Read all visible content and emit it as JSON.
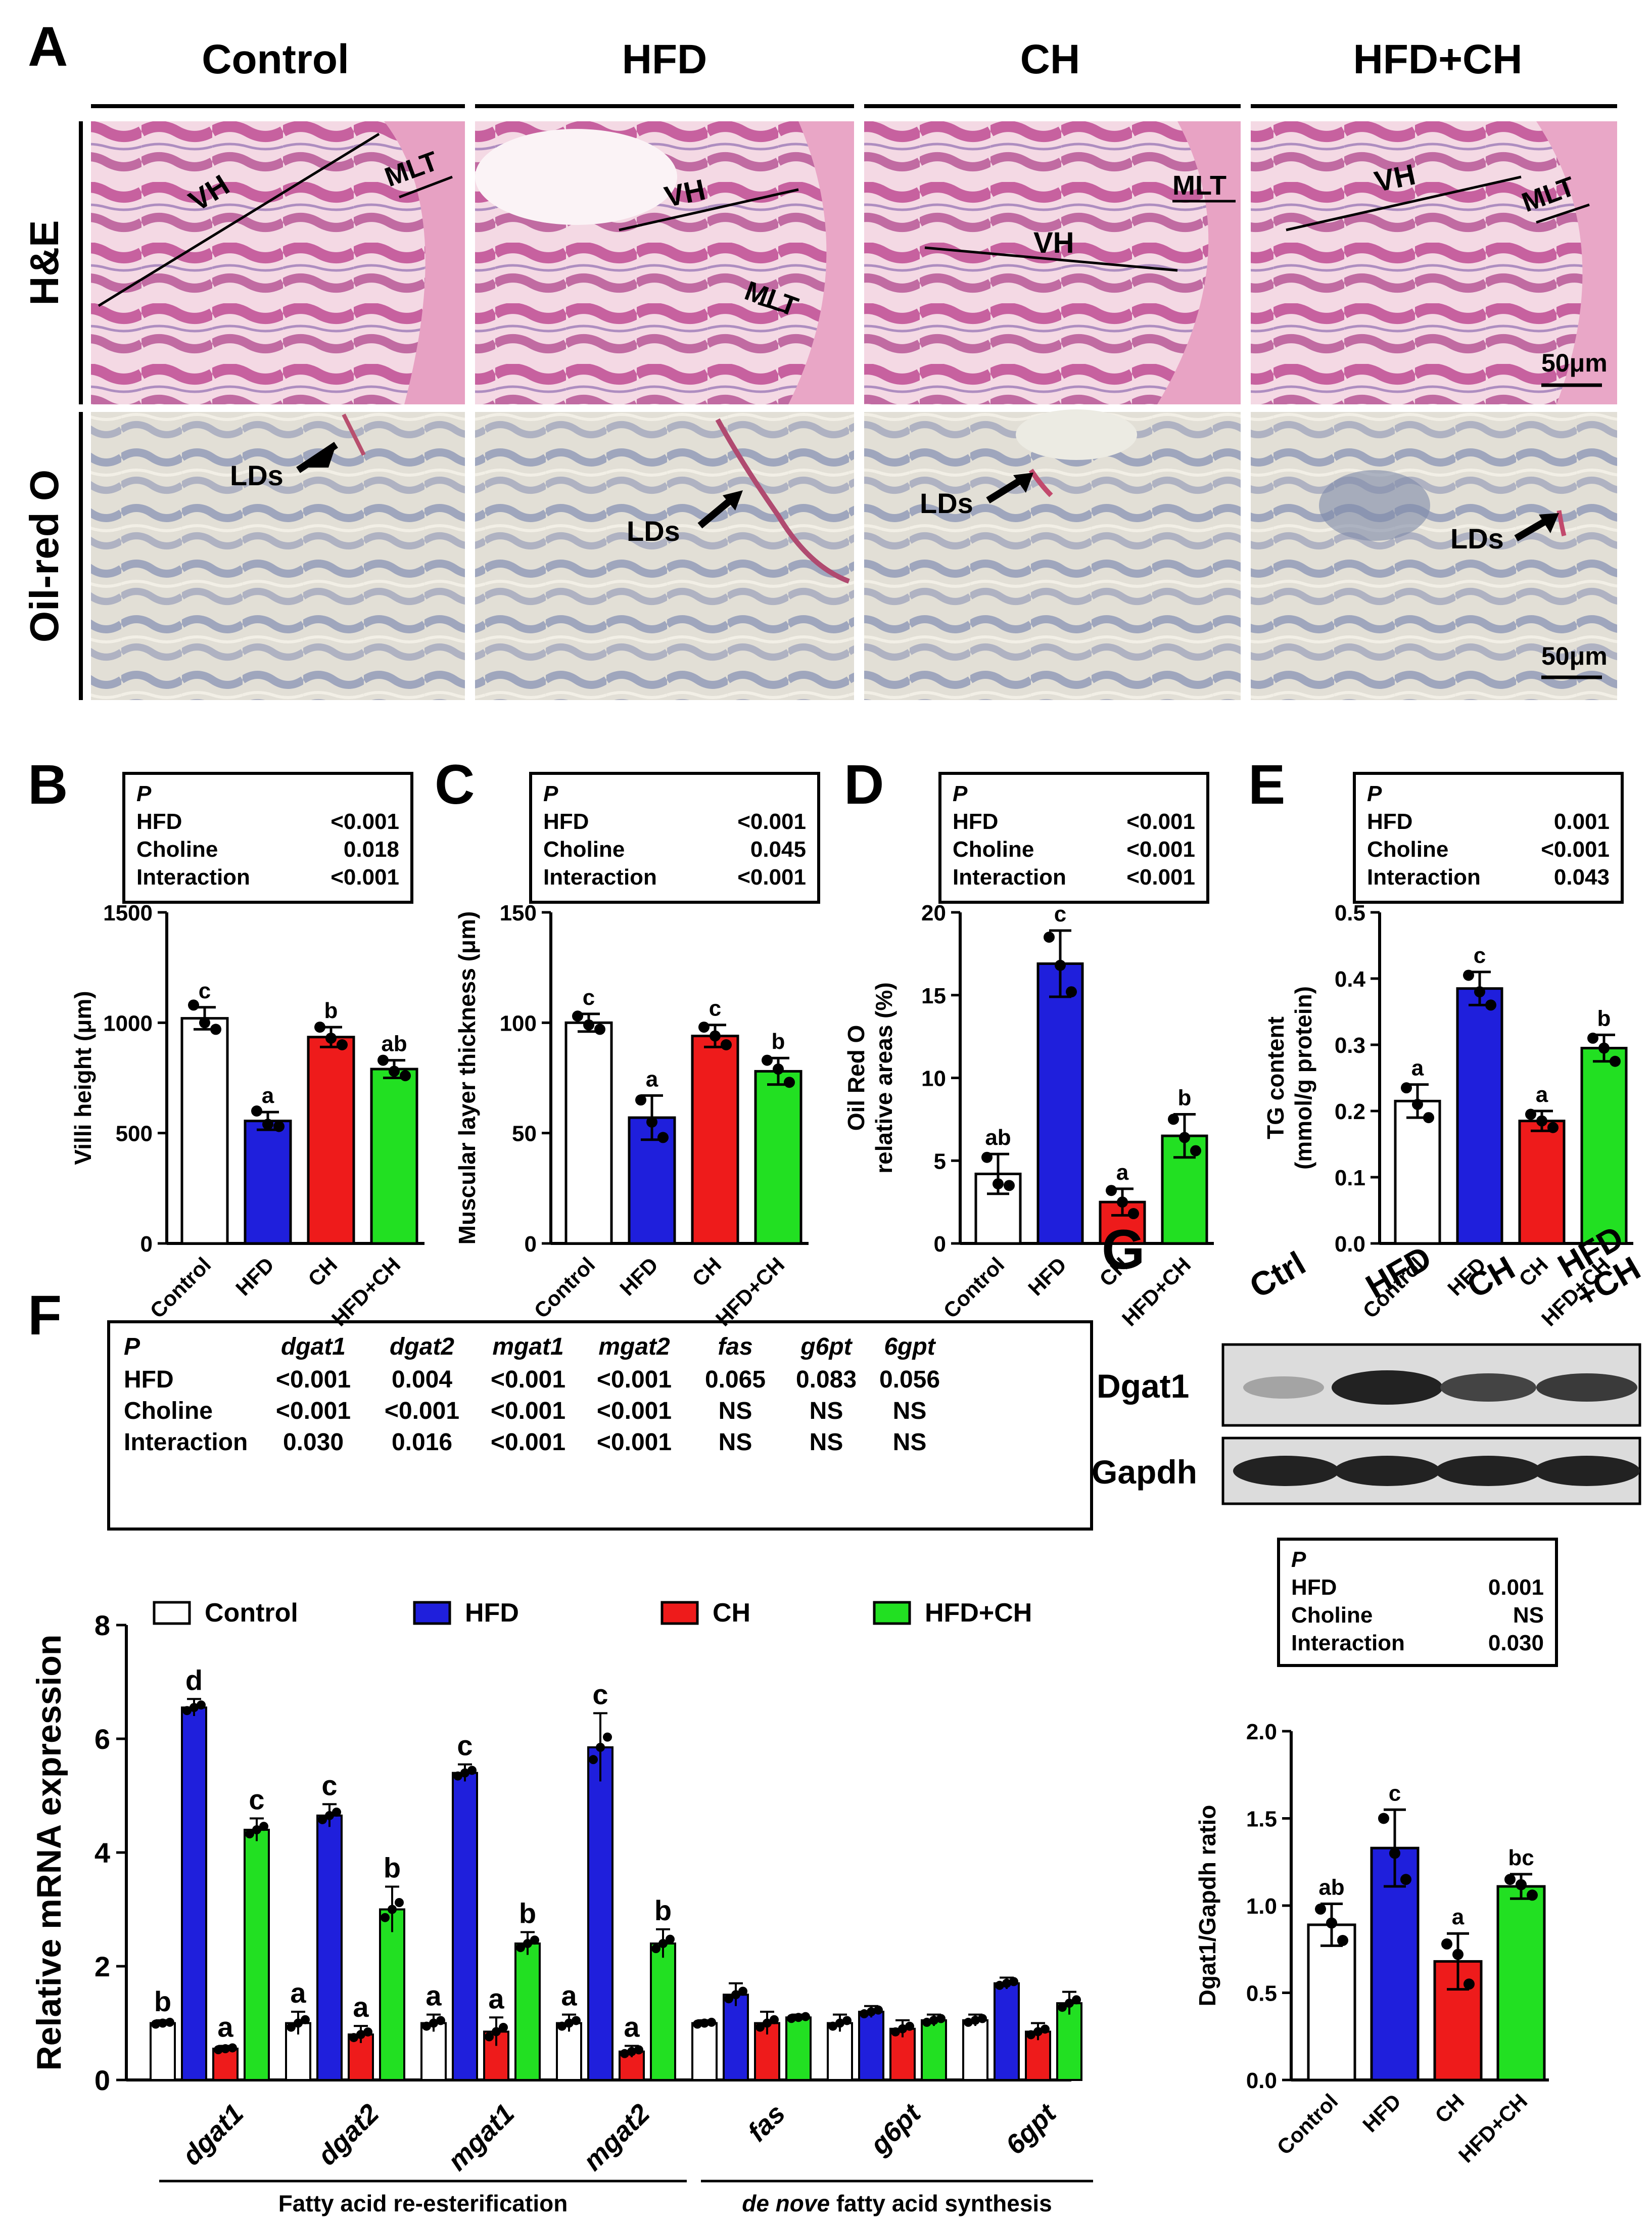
{
  "colors": {
    "control": "#ffffff",
    "hfd": "#1f1fdc",
    "ch": "#ee1b1b",
    "hfdch": "#22e022",
    "he_bg": "#f5dce6",
    "he_tissue": "#c8559a",
    "orc_bg": "#dedbd2",
    "orc_tissue": "#8c93b4"
  },
  "panel_a": {
    "letter": "A",
    "columns": [
      "Control",
      "HFD",
      "CH",
      "HFD+CH"
    ],
    "rows": [
      "H&E",
      "Oil-red O"
    ],
    "labels": {
      "vh": "VH",
      "mlt": "MLT",
      "lds": "LDs"
    },
    "scale": "50μm"
  },
  "bar_panels": [
    {
      "id": "B",
      "letter": "B",
      "ylabel": "Villi height (μm)",
      "ylabel2": "",
      "ylim": [
        0,
        1500
      ],
      "ticks": [
        "0",
        "500",
        "1000",
        "1500"
      ],
      "stats": {
        "header": "P",
        "rows": [
          [
            "HFD",
            "<0.001"
          ],
          [
            "Choline",
            "0.018"
          ],
          [
            "Interaction",
            "<0.001"
          ]
        ]
      },
      "categories": [
        "Control",
        "HFD",
        "CH",
        "HFD+CH"
      ],
      "values": [
        1020,
        555,
        935,
        790
      ],
      "errors": [
        50,
        40,
        45,
        40
      ],
      "letters": [
        "c",
        "a",
        "b",
        "ab"
      ],
      "points": [
        [
          1080,
          1000,
          970
        ],
        [
          600,
          540,
          530
        ],
        [
          980,
          930,
          900
        ],
        [
          830,
          780,
          760
        ]
      ]
    },
    {
      "id": "C",
      "letter": "C",
      "ylabel": "Muscular layer thickness (μm)",
      "ylabel2": "",
      "ylim": [
        0,
        150
      ],
      "ticks": [
        "0",
        "50",
        "100",
        "150"
      ],
      "stats": {
        "header": "P",
        "rows": [
          [
            "HFD",
            "<0.001"
          ],
          [
            "Choline",
            "0.045"
          ],
          [
            "Interaction",
            "<0.001"
          ]
        ]
      },
      "categories": [
        "Control",
        "HFD",
        "CH",
        "HFD+CH"
      ],
      "values": [
        100,
        57,
        94,
        78
      ],
      "errors": [
        4,
        10,
        5,
        6
      ],
      "letters": [
        "c",
        "a",
        "c",
        "b"
      ],
      "points": [
        [
          103,
          99,
          97
        ],
        [
          65,
          55,
          48
        ],
        [
          98,
          94,
          90
        ],
        [
          83,
          79,
          73
        ]
      ]
    },
    {
      "id": "D",
      "letter": "D",
      "ylabel": "Oil Red O",
      "ylabel2": "relative areas (%)",
      "ylim": [
        0,
        20
      ],
      "ticks": [
        "0",
        "5",
        "10",
        "15",
        "20"
      ],
      "stats": {
        "header": "P",
        "rows": [
          [
            "HFD",
            "<0.001"
          ],
          [
            "Choline",
            "<0.001"
          ],
          [
            "Interaction",
            "<0.001"
          ]
        ]
      },
      "categories": [
        "Control",
        "HFD",
        "CH",
        "HFD+CH"
      ],
      "values": [
        4.2,
        16.9,
        2.5,
        6.5
      ],
      "errors": [
        1.2,
        2.0,
        0.8,
        1.3
      ],
      "letters": [
        "ab",
        "c",
        "a",
        "b"
      ],
      "points": [
        [
          5.2,
          3.6,
          3.5
        ],
        [
          18.5,
          16.8,
          15.2
        ],
        [
          3.2,
          2.5,
          1.8
        ],
        [
          7.5,
          6.4,
          5.6
        ]
      ]
    },
    {
      "id": "E",
      "letter": "E",
      "ylabel": "TG content",
      "ylabel2": "(mmol/g protein)",
      "ylim": [
        0,
        0.5
      ],
      "ticks": [
        "0.0",
        "0.1",
        "0.2",
        "0.3",
        "0.4",
        "0.5"
      ],
      "stats": {
        "header": "P",
        "rows": [
          [
            "HFD",
            "0.001"
          ],
          [
            "Choline",
            "<0.001"
          ],
          [
            "Interaction",
            "0.043"
          ]
        ]
      },
      "categories": [
        "Control",
        "HFD",
        "CH",
        "HFD+CH"
      ],
      "values": [
        0.215,
        0.385,
        0.185,
        0.295
      ],
      "errors": [
        0.025,
        0.025,
        0.015,
        0.02
      ],
      "letters": [
        "a",
        "c",
        "a",
        "b"
      ],
      "points": [
        [
          0.235,
          0.21,
          0.19
        ],
        [
          0.405,
          0.38,
          0.36
        ],
        [
          0.195,
          0.185,
          0.175
        ],
        [
          0.31,
          0.295,
          0.275
        ]
      ]
    }
  ],
  "panel_f": {
    "letter": "F",
    "ylabel": "Relative mRNA expression",
    "ylim": [
      0,
      8
    ],
    "ticks": [
      "0",
      "2",
      "4",
      "6",
      "8"
    ],
    "stats": {
      "columns": [
        "P",
        "dgat1",
        "dgat2",
        "mgat1",
        "mgat2",
        "fas",
        "g6pt",
        "6gpt"
      ],
      "rows": [
        [
          "HFD",
          "<0.001",
          "0.004",
          "<0.001",
          "<0.001",
          "0.065",
          "0.083",
          "0.056"
        ],
        [
          "Choline",
          "<0.001",
          "<0.001",
          "<0.001",
          "<0.001",
          "NS",
          "NS",
          "NS"
        ],
        [
          "Interaction",
          "0.030",
          "0.016",
          "<0.001",
          "<0.001",
          "NS",
          "NS",
          "NS"
        ]
      ]
    },
    "legend": [
      "Control",
      "HFD",
      "CH",
      "HFD+CH"
    ],
    "genes": [
      "dgat1",
      "dgat2",
      "mgat1",
      "mgat2",
      "fas",
      "g6pt",
      "6gpt"
    ],
    "series": [
      {
        "name": "Control",
        "values": [
          1.0,
          1.0,
          1.0,
          1.0,
          1.0,
          1.0,
          1.05
        ],
        "errors": [
          0.05,
          0.2,
          0.15,
          0.15,
          0.05,
          0.15,
          0.1
        ],
        "letters": [
          "b",
          "a",
          "a",
          "a",
          "",
          "",
          ""
        ]
      },
      {
        "name": "HFD",
        "values": [
          6.55,
          4.65,
          5.4,
          5.85,
          1.5,
          1.2,
          1.7
        ],
        "errors": [
          0.15,
          0.2,
          0.15,
          0.6,
          0.2,
          0.1,
          0.1
        ],
        "letters": [
          "d",
          "c",
          "c",
          "c",
          "",
          "",
          ""
        ]
      },
      {
        "name": "CH",
        "values": [
          0.55,
          0.8,
          0.85,
          0.5,
          1.0,
          0.9,
          0.85
        ],
        "errors": [
          0.05,
          0.15,
          0.25,
          0.1,
          0.2,
          0.15,
          0.15
        ],
        "letters": [
          "a",
          "a",
          "a",
          "a",
          "",
          "",
          ""
        ]
      },
      {
        "name": "HFD+CH",
        "values": [
          4.4,
          3.0,
          2.4,
          2.4,
          1.1,
          1.05,
          1.35
        ],
        "errors": [
          0.2,
          0.4,
          0.2,
          0.25,
          0.05,
          0.1,
          0.2
        ],
        "letters": [
          "c",
          "b",
          "b",
          "b",
          "",
          "",
          ""
        ]
      }
    ],
    "groups": [
      {
        "label": "Fatty acid re-esterification",
        "start": 0,
        "end": 3
      },
      {
        "label_italic": "de nove",
        "label_rest": " fatty acid synthesis",
        "start": 4,
        "end": 6
      }
    ]
  },
  "panel_g": {
    "letter": "G",
    "lanes": [
      "Ctrl",
      "HFD",
      "CH",
      "HFD",
      "+CH"
    ],
    "blots": [
      "Dgat1",
      "Gapdh"
    ],
    "ylabel": "Dgat1/Gapdh ratio",
    "ylim": [
      0,
      2.0
    ],
    "ticks": [
      "0.0",
      "0.5",
      "1.0",
      "1.5",
      "2.0"
    ],
    "stats": {
      "header": "P",
      "rows": [
        [
          "HFD",
          "0.001"
        ],
        [
          "Choline",
          "NS"
        ],
        [
          "Interaction",
          "0.030"
        ]
      ]
    },
    "categories": [
      "Control",
      "HFD",
      "CH",
      "HFD+CH"
    ],
    "values": [
      0.89,
      1.33,
      0.68,
      1.11
    ],
    "errors": [
      0.12,
      0.22,
      0.16,
      0.07
    ],
    "letters": [
      "ab",
      "c",
      "a",
      "bc"
    ],
    "points": [
      [
        0.98,
        0.9,
        0.8
      ],
      [
        1.5,
        1.3,
        1.15
      ],
      [
        0.78,
        0.72,
        0.55
      ],
      [
        1.15,
        1.12,
        1.06
      ]
    ]
  },
  "chart_data": [
    {
      "type": "bar",
      "panel": "B",
      "categories": [
        "Control",
        "HFD",
        "CH",
        "HFD+CH"
      ],
      "values": [
        1020,
        555,
        935,
        790
      ],
      "ylabel": "Villi height (μm)",
      "ylim": [
        0,
        1500
      ]
    },
    {
      "type": "bar",
      "panel": "C",
      "categories": [
        "Control",
        "HFD",
        "CH",
        "HFD+CH"
      ],
      "values": [
        100,
        57,
        94,
        78
      ],
      "ylabel": "Muscular layer thickness (μm)",
      "ylim": [
        0,
        150
      ]
    },
    {
      "type": "bar",
      "panel": "D",
      "categories": [
        "Control",
        "HFD",
        "CH",
        "HFD+CH"
      ],
      "values": [
        4.2,
        16.9,
        2.5,
        6.5
      ],
      "ylabel": "Oil Red O relative areas (%)",
      "ylim": [
        0,
        20
      ]
    },
    {
      "type": "bar",
      "panel": "E",
      "categories": [
        "Control",
        "HFD",
        "CH",
        "HFD+CH"
      ],
      "values": [
        0.215,
        0.385,
        0.185,
        0.295
      ],
      "ylabel": "TG content (mmol/g protein)",
      "ylim": [
        0,
        0.5
      ]
    },
    {
      "type": "bar",
      "panel": "F",
      "categories": [
        "dgat1",
        "dgat2",
        "mgat1",
        "mgat2",
        "fas",
        "g6pt",
        "6gpt"
      ],
      "series": [
        {
          "name": "Control",
          "values": [
            1.0,
            1.0,
            1.0,
            1.0,
            1.0,
            1.0,
            1.05
          ]
        },
        {
          "name": "HFD",
          "values": [
            6.55,
            4.65,
            5.4,
            5.85,
            1.5,
            1.2,
            1.7
          ]
        },
        {
          "name": "CH",
          "values": [
            0.55,
            0.8,
            0.85,
            0.5,
            1.0,
            0.9,
            0.85
          ]
        },
        {
          "name": "HFD+CH",
          "values": [
            4.4,
            3.0,
            2.4,
            2.4,
            1.1,
            1.05,
            1.35
          ]
        }
      ],
      "ylabel": "Relative mRNA expression",
      "ylim": [
        0,
        8
      ],
      "legend": "top"
    },
    {
      "type": "bar",
      "panel": "G",
      "categories": [
        "Control",
        "HFD",
        "CH",
        "HFD+CH"
      ],
      "values": [
        0.89,
        1.33,
        0.68,
        1.11
      ],
      "ylabel": "Dgat1/Gapdh ratio",
      "ylim": [
        0,
        2.0
      ]
    }
  ]
}
